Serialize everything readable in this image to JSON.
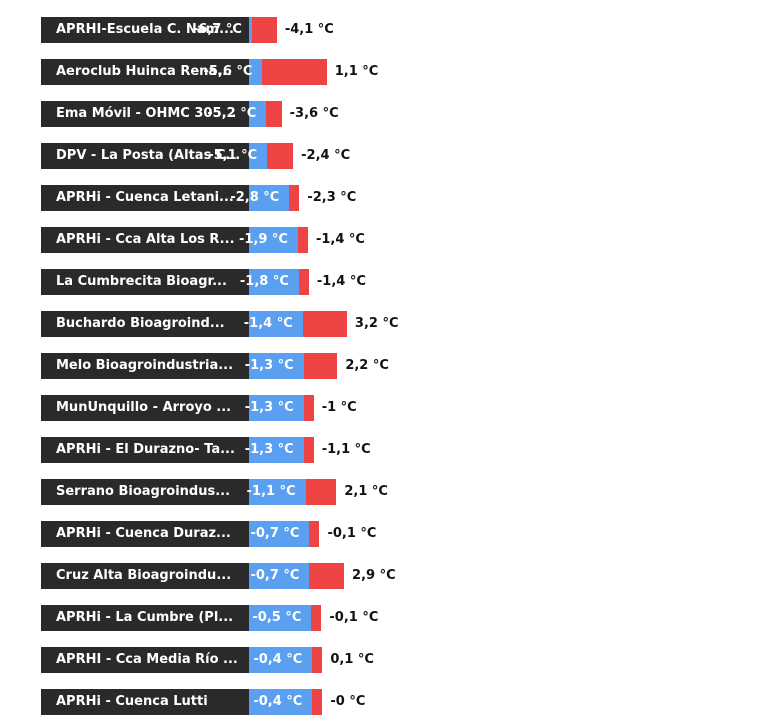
{
  "chart_data": {
    "type": "bar",
    "subtype": "floating-range",
    "colors": {
      "min": "#5b9ff0",
      "max": "#ef4444",
      "label_bg": "#2a2a2a"
    },
    "series": [
      {
        "key": "min"
      },
      {
        "key": "max"
      }
    ],
    "rows": [
      {
        "station": "APRHI-Escuela C. Nam...",
        "min": -6.7,
        "max": -4.1,
        "min_label": "-6,7 °C",
        "max_label": "-4,1 °C"
      },
      {
        "station": "Aeroclub Huinca Rena...",
        "min": -5.6,
        "max": 1.1,
        "min_label": "-5,6 °C",
        "max_label": "1,1 °C"
      },
      {
        "station": "Ema Móvil - OHMC 305...",
        "min": -5.2,
        "max": -3.6,
        "min_label": "-5,2 °C",
        "max_label": "-3,6 °C"
      },
      {
        "station": "DPV - La Posta (Altas C...",
        "min": -5.1,
        "max": -2.4,
        "min_label": "-5,1 °C",
        "max_label": "-2,4 °C"
      },
      {
        "station": "APRHi - Cuenca Letani...",
        "min": -2.8,
        "max": -2.3,
        "min_label": "-2,8 °C",
        "max_label": "-2,3 °C"
      },
      {
        "station": "APRHi - Cca Alta Los R...",
        "min": -1.9,
        "max": -1.4,
        "min_label": "-1,9 °C",
        "max_label": "-1,4 °C"
      },
      {
        "station": "La Cumbrecita Bioagr...",
        "min": -1.8,
        "max": -1.4,
        "min_label": "-1,8 °C",
        "max_label": "-1,4 °C"
      },
      {
        "station": "Buchardo Bioagroind...",
        "min": -1.4,
        "max": 3.2,
        "min_label": "-1,4 °C",
        "max_label": "3,2 °C"
      },
      {
        "station": "Melo Bioagroindustria...",
        "min": -1.3,
        "max": 2.2,
        "min_label": "-1,3 °C",
        "max_label": "2,2 °C"
      },
      {
        "station": "MunUnquillo - Arroyo ...",
        "min": -1.3,
        "max": -1.0,
        "min_label": "-1,3 °C",
        "max_label": "-1 °C"
      },
      {
        "station": "APRHi - El Durazno- Ta...",
        "min": -1.3,
        "max": -1.1,
        "min_label": "-1,3 °C",
        "max_label": "-1,1 °C"
      },
      {
        "station": "Serrano Bioagroindus...",
        "min": -1.1,
        "max": 2.1,
        "min_label": "-1,1 °C",
        "max_label": "2,1 °C"
      },
      {
        "station": "APRHi - Cuenca Duraz...",
        "min": -0.7,
        "max": -0.1,
        "min_label": "-0,7 °C",
        "max_label": "-0,1 °C"
      },
      {
        "station": "Cruz Alta Bioagroindu...",
        "min": -0.7,
        "max": 2.9,
        "min_label": "-0,7 °C",
        "max_label": "2,9 °C"
      },
      {
        "station": "APRHi - La Cumbre (Pl...",
        "min": -0.5,
        "max": -0.1,
        "min_label": "-0,5 °C",
        "max_label": "-0,1 °C"
      },
      {
        "station": "APRHI - Cca Media Río ...",
        "min": -0.4,
        "max": 0.1,
        "min_label": "-0,4 °C",
        "max_label": "0,1 °C"
      },
      {
        "station": "APRHi - Cuenca Lutti",
        "min": -0.4,
        "max": -0.0,
        "min_label": "-0,4 °C",
        "max_label": "-0 °C"
      }
    ]
  }
}
